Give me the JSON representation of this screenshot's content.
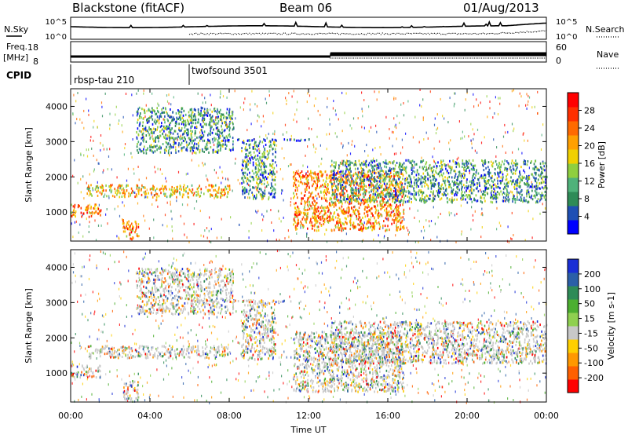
{
  "chart_data": {
    "type": "heatmap",
    "header": {
      "station": "Blackstone (fitACF)",
      "beam": "Beam 06",
      "date": "01/Aug/2013"
    },
    "x_axis": {
      "label": "Time UT",
      "ticks": [
        "00:00",
        "04:00",
        "08:00",
        "12:00",
        "16:00",
        "20:00",
        "00:00"
      ],
      "range_hours": [
        0,
        24
      ]
    },
    "noise_panel": {
      "left_label": "N.Sky",
      "right_label": "N.Search",
      "left_ticks": [
        "10^5",
        "10^0"
      ],
      "right_ticks": [
        "10^5",
        "10^0"
      ]
    },
    "freq_panel": {
      "left_label_line1": "Freq.",
      "left_label_line2": "[MHz]",
      "left_ticks": [
        "18",
        "8"
      ],
      "right_label": "Nave",
      "right_ticks": [
        "60",
        "0"
      ],
      "freq_steps": [
        {
          "from_hour": 0,
          "to_hour": 13.1,
          "value_mhz": 10.5
        },
        {
          "from_hour": 13.1,
          "to_hour": 24,
          "value_mhz": 12.5
        }
      ]
    },
    "cpid": {
      "label": "CPID",
      "programs": [
        {
          "name": "rbsp-tau 210",
          "from_hour": 0,
          "to_hour": 6.1
        },
        {
          "name": "twofsound 3501",
          "from_hour": 6.1,
          "to_hour": 24
        }
      ]
    },
    "panels": [
      {
        "parameter": "Power",
        "y_label": "Slant Range [km]",
        "y_ticks": [
          1000,
          2000,
          3000,
          4000
        ],
        "y_range_km": [
          180,
          4500
        ],
        "colorbar_label": "Power [dB]",
        "colorbar_ticks": [
          4,
          8,
          12,
          16,
          20,
          24,
          28
        ],
        "colorbar_range": [
          0,
          32
        ],
        "colors": [
          "#0000ff",
          "#1e4fb4",
          "#2e8b57",
          "#4fb27a",
          "#8fcf3f",
          "#f0d000",
          "#ffa000",
          "#ff6a00",
          "#ff3000",
          "#ff0000"
        ]
      },
      {
        "parameter": "Velocity",
        "y_label": "Slant Range [km]",
        "y_ticks": [
          1000,
          2000,
          3000,
          4000
        ],
        "y_range_km": [
          180,
          4500
        ],
        "colorbar_label": "Velocity [m s-1]",
        "colorbar_ticks": [
          "200",
          "100",
          "50",
          "15",
          "-15",
          "-50",
          "-100",
          "-200"
        ],
        "colors": [
          "#1a2fd6",
          "#2b5fa8",
          "#2e8b57",
          "#4caf30",
          "#8fd050",
          "#c8c8c8",
          "#ffd000",
          "#ff9800",
          "#ff6000",
          "#ff0000"
        ]
      }
    ],
    "echo_bands": [
      {
        "from_hour": 0.0,
        "to_hour": 1.5,
        "range_km": [
          900,
          1250
        ],
        "power": "high"
      },
      {
        "from_hour": 0.8,
        "to_hour": 8.0,
        "range_km": [
          1450,
          1800
        ],
        "power": "mid-high"
      },
      {
        "from_hour": 2.6,
        "to_hour": 3.4,
        "range_km": [
          250,
          850
        ],
        "power": "high"
      },
      {
        "from_hour": 3.3,
        "to_hour": 8.2,
        "range_km": [
          2700,
          4000
        ],
        "power": "mid"
      },
      {
        "from_hour": 8.6,
        "to_hour": 10.3,
        "range_km": [
          1400,
          3100
        ],
        "power": "mid"
      },
      {
        "from_hour": 11.2,
        "to_hour": 16.8,
        "range_km": [
          500,
          2200
        ],
        "power": "high"
      },
      {
        "from_hour": 13.1,
        "to_hour": 24.0,
        "range_km": [
          1300,
          2500
        ],
        "power": "mid"
      },
      {
        "from_hour": 6.0,
        "to_hour": 12.0,
        "range_km": [
          3050,
          3100
        ],
        "power": "low"
      }
    ]
  }
}
